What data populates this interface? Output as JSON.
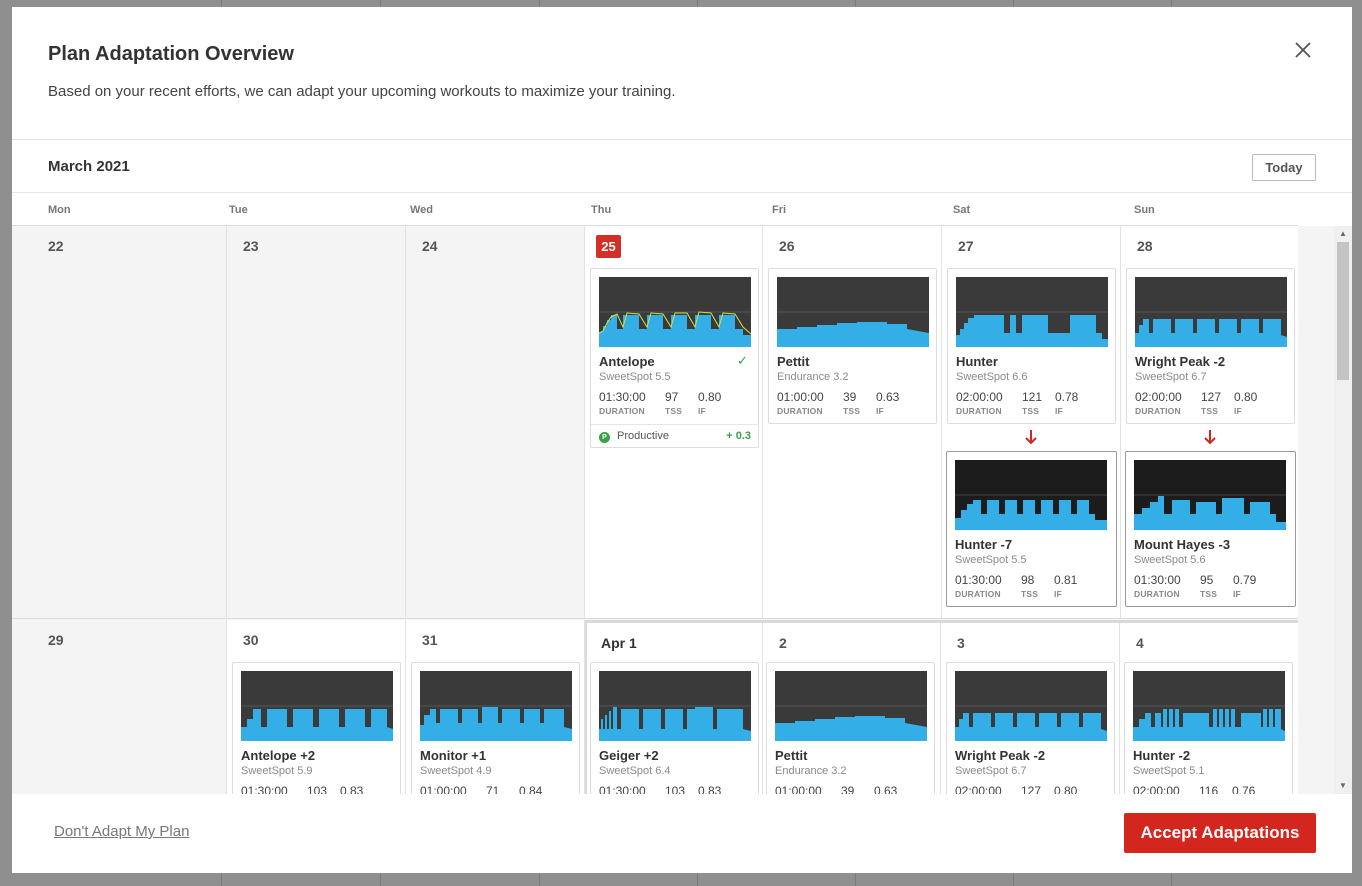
{
  "modal": {
    "title": "Plan Adaptation Overview",
    "subtitle": "Based on your recent efforts, we can adapt your upcoming workouts to maximize your training.",
    "close_icon": "close-icon"
  },
  "calendar": {
    "month": "March 2021",
    "today_label": "Today",
    "weekdays": [
      "Mon",
      "Tue",
      "Wed",
      "Thu",
      "Fri",
      "Sat",
      "Sun"
    ],
    "week1_days": [
      "22",
      "23",
      "24",
      "25",
      "26",
      "27",
      "28"
    ],
    "week2_days": [
      "29",
      "30",
      "31",
      "Apr 1",
      "2",
      "3",
      "4"
    ]
  },
  "stat_labels": {
    "duration": "DURATION",
    "tss": "TSS",
    "if": "IF"
  },
  "workouts": {
    "antelope": {
      "name": "Antelope",
      "category": "SweetSpot 5.5",
      "duration": "01:30:00",
      "tss": "97",
      "if": "0.80"
    },
    "pettit1": {
      "name": "Pettit",
      "category": "Endurance 3.2",
      "duration": "01:00:00",
      "tss": "39",
      "if": "0.63"
    },
    "hunter": {
      "name": "Hunter",
      "category": "SweetSpot 6.6",
      "duration": "02:00:00",
      "tss": "121",
      "if": "0.78"
    },
    "wright1": {
      "name": "Wright Peak -2",
      "category": "SweetSpot 6.7",
      "duration": "02:00:00",
      "tss": "127",
      "if": "0.80"
    },
    "hunter7": {
      "name": "Hunter -7",
      "category": "SweetSpot 5.5",
      "duration": "01:30:00",
      "tss": "98",
      "if": "0.81"
    },
    "hayes": {
      "name": "Mount Hayes -3",
      "category": "SweetSpot 5.6",
      "duration": "01:30:00",
      "tss": "95",
      "if": "0.79"
    },
    "antelope2": {
      "name": "Antelope +2",
      "category": "SweetSpot 5.9",
      "duration": "01:30:00",
      "tss": "103",
      "if": "0.83"
    },
    "monitor": {
      "name": "Monitor +1",
      "category": "SweetSpot 4.9",
      "duration": "01:00:00",
      "tss": "71",
      "if": "0.84"
    },
    "geiger": {
      "name": "Geiger +2",
      "category": "SweetSpot 6.4",
      "duration": "01:30:00",
      "tss": "103",
      "if": "0.83"
    },
    "pettit2": {
      "name": "Pettit",
      "category": "Endurance 3.2",
      "duration": "01:00:00",
      "tss": "39",
      "if": "0.63"
    },
    "wright2": {
      "name": "Wright Peak -2",
      "category": "SweetSpot 6.7",
      "duration": "02:00:00",
      "tss": "127",
      "if": "0.80"
    },
    "hunter2": {
      "name": "Hunter -2",
      "category": "SweetSpot 5.1",
      "duration": "02:00:00",
      "tss": "116",
      "if": "0.76"
    }
  },
  "progression": {
    "label": "Productive",
    "icon_letter": "P",
    "value": "+ 0.3"
  },
  "colors": {
    "accent_red": "#d3261e",
    "interval_blue": "#33aee6",
    "graph_bg": "#3a3a3a",
    "success_green": "#3aa04a"
  },
  "footer": {
    "dont_adapt_label": "Don't Adapt My Plan",
    "accept_label": "Accept Adaptations"
  }
}
